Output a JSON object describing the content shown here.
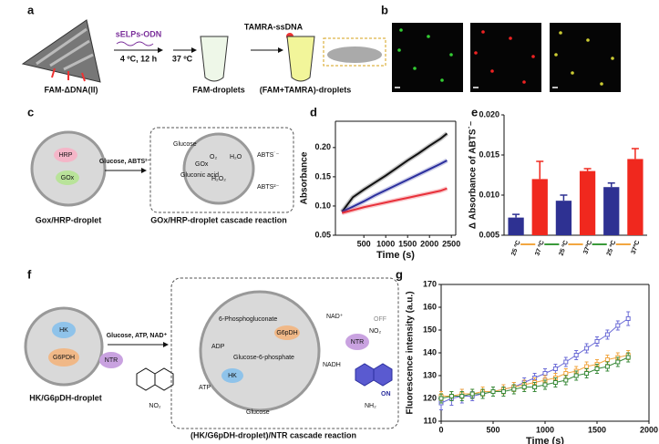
{
  "panels": {
    "a": {
      "label": "a",
      "dna": "FAM-ΔDNA(II)",
      "reagent": "sELPs-ODN",
      "condition1": "4 ºC, 12 h",
      "condition2": "37 ºC",
      "droplets1": "FAM-droplets",
      "reagent2": "TAMRA-ssDNA",
      "droplets2": "(FAM+TAMRA)-droplets"
    },
    "b": {
      "label": "b"
    },
    "c": {
      "label": "c",
      "enzyme1": "HRP",
      "enzyme2": "GOx",
      "arrow": "Glucose, ABTS²⁻",
      "droplet": "Gox/HRP-droplet",
      "glucose": "Glucose",
      "gox": "GOx",
      "o2": "O₂",
      "h2o": "H₂O",
      "abts_ox": "ABTS˙⁻",
      "gluconic": "Gluconic acid",
      "h2o2": "H₂O₂",
      "abts": "ABTS²⁻",
      "caption": "GOx/HRP-droplet cascade reaction"
    },
    "f": {
      "label": "f",
      "enzyme1": "HK",
      "enzyme2": "G6PDH",
      "ntr": "NTR",
      "arrow": "Glucose, ATP, NAD⁺",
      "droplet": "HK/G6pDH-droplet",
      "no2": "NO₂",
      "pg": "6-Phosphogluconate",
      "g6pdh": "G6pDH",
      "adp": "ADP",
      "g6p": "Glucose-6-phosphate",
      "hk": "HK",
      "atp": "ATP",
      "glucose": "Glucose",
      "nad": "NAD⁺",
      "nadh": "NADH",
      "ntr2": "NTR",
      "off": "OFF",
      "no2b": "NO₂",
      "on": "ON",
      "nh2": "NH₂",
      "caption": "(HK/G6pDH-droplet)/NTR cascade reaction"
    }
  },
  "chart_data": [
    {
      "type": "line",
      "panel": "d",
      "xlabel": "Time (s)",
      "ylabel": "Absorbance",
      "xlim": [
        -150,
        2600
      ],
      "ylim": [
        0.05,
        0.245
      ],
      "xticks": [
        500,
        1000,
        1500,
        2000,
        2500
      ],
      "yticks": [
        0.05,
        {
          "value": 0.1,
          "label": "0.10"
        },
        0.15,
        {
          "value": 0.2,
          "label": "0.20"
        }
      ],
      "x": [
        0,
        250,
        500,
        750,
        1000,
        1250,
        1500,
        1750,
        2000,
        2250,
        2400
      ],
      "series": [
        {
          "color": "#111111",
          "values": [
            0.09,
            0.115,
            0.128,
            0.14,
            0.152,
            0.165,
            0.178,
            0.19,
            0.203,
            0.215,
            0.224
          ]
        },
        {
          "color": "#2b2f9e",
          "values": [
            0.09,
            0.099,
            0.108,
            0.118,
            0.127,
            0.136,
            0.145,
            0.154,
            0.163,
            0.172,
            0.178
          ]
        },
        {
          "color": "#e8303a",
          "values": [
            0.088,
            0.093,
            0.098,
            0.102,
            0.106,
            0.11,
            0.114,
            0.118,
            0.122,
            0.126,
            0.13
          ]
        }
      ]
    },
    {
      "type": "bar",
      "panel": "e",
      "ylabel": "Δ Absorbance of ABTS˙⁻",
      "ylim": [
        0.005,
        0.02
      ],
      "yticks": [
        0.005,
        {
          "value": 0.01,
          "label": "0.010"
        },
        0.015,
        {
          "value": 0.02,
          "label": "0.020"
        }
      ],
      "categories": [
        "25 ºC",
        "37 ºC",
        "25 ºC",
        "37ºC",
        "25 ºC",
        "37ºC"
      ],
      "values": [
        0.0072,
        0.012,
        0.0093,
        0.013,
        0.011,
        0.0145
      ],
      "errors": [
        0.0004,
        0.0022,
        0.0007,
        0.0003,
        0.0005,
        0.0013
      ],
      "colors": [
        "#2e3192",
        "#f0281e",
        "#2e3192",
        "#f0281e",
        "#2e3192",
        "#f0281e"
      ]
    },
    {
      "type": "line",
      "panel": "g",
      "xlabel": "Time (s)",
      "ylabel": "Fluorescence intensity (a.u.)",
      "xlim": [
        0,
        2000
      ],
      "ylim": [
        110,
        170
      ],
      "xticks": [
        0,
        500,
        1000,
        1500,
        2000
      ],
      "yticks": [
        110,
        120,
        130,
        140,
        150,
        160,
        170
      ],
      "markers": true,
      "x": [
        0,
        100,
        200,
        300,
        400,
        500,
        600,
        700,
        800,
        900,
        1000,
        1100,
        1200,
        1300,
        1400,
        1500,
        1600,
        1700,
        1800
      ],
      "series": [
        {
          "color": "#6b6bd6",
          "values": [
            118,
            120,
            121,
            121,
            122,
            123,
            124,
            125,
            127,
            129,
            131,
            133,
            136,
            139,
            142,
            145,
            148,
            152,
            155
          ],
          "errors": [
            3,
            3,
            3,
            2,
            2,
            2,
            2,
            2,
            2,
            2,
            2,
            2,
            2,
            2,
            2,
            2,
            2,
            2,
            3
          ]
        },
        {
          "color": "#f2a640",
          "values": [
            121,
            121,
            122,
            122,
            123,
            123,
            124,
            125,
            126,
            127,
            128,
            129,
            131,
            132,
            134,
            135,
            137,
            138,
            139
          ],
          "errors": [
            2,
            2,
            2,
            2,
            2,
            2,
            2,
            2,
            2,
            2,
            2,
            2,
            2,
            2,
            2,
            2,
            2,
            2,
            2
          ]
        },
        {
          "color": "#3a8a3a",
          "values": [
            120,
            121,
            121,
            122,
            122,
            123,
            123,
            124,
            125,
            125,
            126,
            127,
            128,
            130,
            131,
            133,
            134,
            136,
            138
          ],
          "errors": [
            2,
            2,
            2,
            2,
            2,
            2,
            2,
            2,
            2,
            2,
            2,
            2,
            2,
            2,
            2,
            2,
            2,
            2,
            2
          ]
        }
      ]
    }
  ]
}
